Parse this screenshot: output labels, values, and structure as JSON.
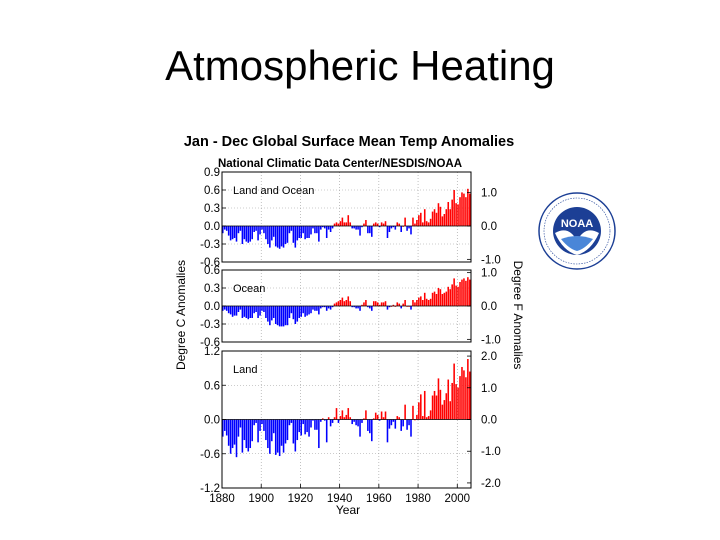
{
  "slide": {
    "title": "Atmospheric Heating"
  },
  "logo": {
    "text": "NOAA",
    "icon": "noaa-seal-icon"
  },
  "colors": {
    "positive": "#ff0000",
    "negative": "#0000ff",
    "frame": "#000000",
    "grid": "#999999"
  },
  "figure": {
    "title": "Jan - Dec Global Surface Mean Temp Anomalies",
    "subtitle": "National Climatic Data Center/NESDIS/NOAA",
    "ylabel_left": "Degree C Anomalies",
    "ylabel_right": "Degree F Anomalies",
    "xlabel": "Year"
  },
  "chart_data": [
    {
      "type": "bar",
      "label": "Land and Ocean",
      "xlim": [
        1880,
        2007
      ],
      "ylim": [
        -0.6,
        0.9
      ],
      "yticks": [
        "0.9",
        "0.6",
        "0.3",
        "0.0",
        "-0.3",
        "-0.6"
      ],
      "right_ticks": [
        {
          "label": "1.0",
          "value": 0.556
        },
        {
          "label": "0.0",
          "value": 0.0
        },
        {
          "label": "-1.0",
          "value": -0.556
        }
      ],
      "x": [
        1880,
        1881,
        1882,
        1883,
        1884,
        1885,
        1886,
        1887,
        1888,
        1889,
        1890,
        1891,
        1892,
        1893,
        1894,
        1895,
        1896,
        1897,
        1898,
        1899,
        1900,
        1901,
        1902,
        1903,
        1904,
        1905,
        1906,
        1907,
        1908,
        1909,
        1910,
        1911,
        1912,
        1913,
        1914,
        1915,
        1916,
        1917,
        1918,
        1919,
        1920,
        1921,
        1922,
        1923,
        1924,
        1925,
        1926,
        1927,
        1928,
        1929,
        1930,
        1931,
        1932,
        1933,
        1934,
        1935,
        1936,
        1937,
        1938,
        1939,
        1940,
        1941,
        1942,
        1943,
        1944,
        1945,
        1946,
        1947,
        1948,
        1949,
        1950,
        1951,
        1952,
        1953,
        1954,
        1955,
        1956,
        1957,
        1958,
        1959,
        1960,
        1961,
        1962,
        1963,
        1964,
        1965,
        1966,
        1967,
        1968,
        1969,
        1970,
        1971,
        1972,
        1973,
        1974,
        1975,
        1976,
        1977,
        1978,
        1979,
        1980,
        1981,
        1982,
        1983,
        1984,
        1985,
        1986,
        1987,
        1988,
        1989,
        1990,
        1991,
        1992,
        1993,
        1994,
        1995,
        1996,
        1997,
        1998,
        1999,
        2000,
        2001,
        2002,
        2003,
        2004,
        2005,
        2006
      ],
      "values": [
        -0.12,
        -0.06,
        -0.08,
        -0.16,
        -0.24,
        -0.22,
        -0.2,
        -0.26,
        -0.12,
        -0.08,
        -0.3,
        -0.22,
        -0.26,
        -0.28,
        -0.26,
        -0.22,
        -0.1,
        -0.08,
        -0.24,
        -0.14,
        -0.06,
        -0.12,
        -0.22,
        -0.3,
        -0.36,
        -0.24,
        -0.18,
        -0.34,
        -0.36,
        -0.38,
        -0.34,
        -0.36,
        -0.3,
        -0.28,
        -0.12,
        -0.08,
        -0.28,
        -0.36,
        -0.24,
        -0.2,
        -0.2,
        -0.12,
        -0.22,
        -0.2,
        -0.2,
        -0.14,
        -0.04,
        -0.12,
        -0.12,
        -0.26,
        -0.06,
        -0.02,
        -0.04,
        -0.2,
        -0.06,
        -0.1,
        -0.04,
        0.04,
        0.06,
        0.04,
        0.08,
        0.14,
        0.06,
        0.06,
        0.18,
        0.06,
        -0.04,
        -0.04,
        -0.06,
        -0.06,
        -0.16,
        -0.02,
        0.04,
        0.1,
        -0.12,
        -0.12,
        -0.18,
        0.04,
        0.06,
        0.04,
        -0.02,
        0.06,
        0.04,
        0.08,
        -0.2,
        -0.1,
        -0.04,
        -0.02,
        -0.06,
        0.06,
        0.04,
        -0.1,
        0.0,
        0.14,
        -0.08,
        -0.04,
        -0.14,
        0.14,
        0.04,
        0.1,
        0.18,
        0.22,
        0.06,
        0.28,
        0.08,
        0.06,
        0.12,
        0.24,
        0.28,
        0.22,
        0.38,
        0.32,
        0.16,
        0.2,
        0.28,
        0.4,
        0.28,
        0.44,
        0.6,
        0.38,
        0.36,
        0.48,
        0.56,
        0.54,
        0.48,
        0.62,
        0.54
      ]
    },
    {
      "type": "bar",
      "label": "Ocean",
      "xlim": [
        1880,
        2007
      ],
      "ylim": [
        -0.6,
        0.6
      ],
      "yticks": [
        "0.6",
        "0.3",
        "0.0",
        "-0.3",
        "-0.6"
      ],
      "right_ticks": [
        {
          "label": "1.0",
          "value": 0.556
        },
        {
          "label": "0.0",
          "value": 0.0
        },
        {
          "label": "-1.0",
          "value": -0.556
        }
      ],
      "x": [
        1880,
        1881,
        1882,
        1883,
        1884,
        1885,
        1886,
        1887,
        1888,
        1889,
        1890,
        1891,
        1892,
        1893,
        1894,
        1895,
        1896,
        1897,
        1898,
        1899,
        1900,
        1901,
        1902,
        1903,
        1904,
        1905,
        1906,
        1907,
        1908,
        1909,
        1910,
        1911,
        1912,
        1913,
        1914,
        1915,
        1916,
        1917,
        1918,
        1919,
        1920,
        1921,
        1922,
        1923,
        1924,
        1925,
        1926,
        1927,
        1928,
        1929,
        1930,
        1931,
        1932,
        1933,
        1934,
        1935,
        1936,
        1937,
        1938,
        1939,
        1940,
        1941,
        1942,
        1943,
        1944,
        1945,
        1946,
        1947,
        1948,
        1949,
        1950,
        1951,
        1952,
        1953,
        1954,
        1955,
        1956,
        1957,
        1958,
        1959,
        1960,
        1961,
        1962,
        1963,
        1964,
        1965,
        1966,
        1967,
        1968,
        1969,
        1970,
        1971,
        1972,
        1973,
        1974,
        1975,
        1976,
        1977,
        1978,
        1979,
        1980,
        1981,
        1982,
        1983,
        1984,
        1985,
        1986,
        1987,
        1988,
        1989,
        1990,
        1991,
        1992,
        1993,
        1994,
        1995,
        1996,
        1997,
        1998,
        1999,
        2000,
        2001,
        2002,
        2003,
        2004,
        2005,
        2006
      ],
      "values": [
        -0.08,
        -0.06,
        -0.08,
        -0.12,
        -0.14,
        -0.18,
        -0.16,
        -0.16,
        -0.1,
        -0.06,
        -0.2,
        -0.18,
        -0.2,
        -0.22,
        -0.2,
        -0.2,
        -0.12,
        -0.1,
        -0.2,
        -0.16,
        -0.08,
        -0.1,
        -0.2,
        -0.26,
        -0.32,
        -0.24,
        -0.2,
        -0.3,
        -0.32,
        -0.34,
        -0.34,
        -0.34,
        -0.32,
        -0.32,
        -0.2,
        -0.12,
        -0.22,
        -0.3,
        -0.26,
        -0.2,
        -0.18,
        -0.12,
        -0.18,
        -0.16,
        -0.14,
        -0.12,
        -0.06,
        -0.08,
        -0.08,
        -0.14,
        -0.04,
        -0.02,
        -0.02,
        -0.08,
        -0.04,
        -0.06,
        -0.02,
        0.04,
        0.06,
        0.08,
        0.1,
        0.14,
        0.08,
        0.1,
        0.16,
        0.08,
        -0.02,
        -0.02,
        -0.04,
        -0.04,
        -0.08,
        0.02,
        0.06,
        0.1,
        -0.02,
        -0.04,
        -0.08,
        0.08,
        0.08,
        0.06,
        0.02,
        0.06,
        0.06,
        0.08,
        -0.06,
        -0.02,
        0.0,
        0.02,
        0.0,
        0.06,
        0.04,
        -0.04,
        0.04,
        0.1,
        0.0,
        0.0,
        -0.06,
        0.1,
        0.06,
        0.1,
        0.14,
        0.16,
        0.1,
        0.22,
        0.12,
        0.1,
        0.12,
        0.22,
        0.24,
        0.2,
        0.3,
        0.28,
        0.2,
        0.22,
        0.24,
        0.32,
        0.28,
        0.36,
        0.46,
        0.34,
        0.32,
        0.4,
        0.44,
        0.46,
        0.42,
        0.48,
        0.44
      ]
    },
    {
      "type": "bar",
      "label": "Land",
      "xlim": [
        1880,
        2007
      ],
      "ylim": [
        -1.2,
        1.2
      ],
      "yticks": [
        "1.2",
        "0.6",
        "0.0",
        "-0.6",
        "-1.2"
      ],
      "right_ticks": [
        {
          "label": "2.0",
          "value": 1.111
        },
        {
          "label": "1.0",
          "value": 0.556
        },
        {
          "label": "0.0",
          "value": 0.0
        },
        {
          "label": "-1.0",
          "value": -0.556
        },
        {
          "label": "-2.0",
          "value": -1.111
        }
      ],
      "xticks": [
        "1880",
        "1900",
        "1920",
        "1940",
        "1960",
        "1980",
        "2000"
      ],
      "x": [
        1880,
        1881,
        1882,
        1883,
        1884,
        1885,
        1886,
        1887,
        1888,
        1889,
        1890,
        1891,
        1892,
        1893,
        1894,
        1895,
        1896,
        1897,
        1898,
        1899,
        1900,
        1901,
        1902,
        1903,
        1904,
        1905,
        1906,
        1907,
        1908,
        1909,
        1910,
        1911,
        1912,
        1913,
        1914,
        1915,
        1916,
        1917,
        1918,
        1919,
        1920,
        1921,
        1922,
        1923,
        1924,
        1925,
        1926,
        1927,
        1928,
        1929,
        1930,
        1931,
        1932,
        1933,
        1934,
        1935,
        1936,
        1937,
        1938,
        1939,
        1940,
        1941,
        1942,
        1943,
        1944,
        1945,
        1946,
        1947,
        1948,
        1949,
        1950,
        1951,
        1952,
        1953,
        1954,
        1955,
        1956,
        1957,
        1958,
        1959,
        1960,
        1961,
        1962,
        1963,
        1964,
        1965,
        1966,
        1967,
        1968,
        1969,
        1970,
        1971,
        1972,
        1973,
        1974,
        1975,
        1976,
        1977,
        1978,
        1979,
        1980,
        1981,
        1982,
        1983,
        1984,
        1985,
        1986,
        1987,
        1988,
        1989,
        1990,
        1991,
        1992,
        1993,
        1994,
        1995,
        1996,
        1997,
        1998,
        1999,
        2000,
        2001,
        2002,
        2003,
        2004,
        2005,
        2006
      ],
      "values": [
        -0.3,
        -0.2,
        -0.28,
        -0.46,
        -0.6,
        -0.5,
        -0.44,
        -0.66,
        -0.3,
        -0.14,
        -0.58,
        -0.36,
        -0.5,
        -0.56,
        -0.5,
        -0.38,
        -0.1,
        -0.06,
        -0.4,
        -0.2,
        -0.08,
        -0.2,
        -0.36,
        -0.5,
        -0.6,
        -0.38,
        -0.24,
        -0.62,
        -0.58,
        -0.64,
        -0.46,
        -0.58,
        -0.42,
        -0.36,
        -0.1,
        -0.06,
        -0.42,
        -0.56,
        -0.36,
        -0.22,
        -0.28,
        -0.08,
        -0.26,
        -0.22,
        -0.3,
        -0.14,
        -0.02,
        -0.18,
        -0.18,
        -0.5,
        -0.04,
        0.02,
        -0.02,
        -0.4,
        0.04,
        -0.12,
        -0.06,
        0.04,
        0.2,
        -0.06,
        0.06,
        0.16,
        0.04,
        0.08,
        0.2,
        0.04,
        -0.08,
        -0.04,
        -0.1,
        -0.12,
        -0.3,
        -0.06,
        0.02,
        0.16,
        -0.2,
        -0.24,
        -0.38,
        0.02,
        0.12,
        0.08,
        -0.02,
        0.14,
        0.04,
        0.14,
        -0.4,
        -0.16,
        -0.1,
        -0.04,
        -0.16,
        0.06,
        0.04,
        -0.2,
        -0.12,
        0.26,
        -0.18,
        -0.1,
        -0.3,
        0.24,
        0.0,
        0.08,
        0.3,
        0.44,
        0.06,
        0.5,
        0.04,
        0.06,
        0.16,
        0.42,
        0.5,
        0.42,
        0.72,
        0.52,
        0.26,
        0.34,
        0.46,
        0.7,
        0.32,
        0.64,
        0.98,
        0.62,
        0.56,
        0.76,
        0.92,
        0.86,
        0.74,
        1.06,
        0.84
      ]
    }
  ]
}
